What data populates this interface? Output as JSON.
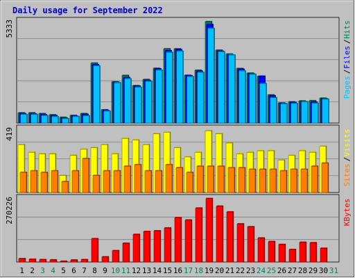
{
  "chart_data": {
    "type": "bar",
    "title": "Daily usage for September 2022",
    "days": [
      "1",
      "2",
      "3",
      "4",
      "5",
      "6",
      "7",
      "8",
      "9",
      "10",
      "11",
      "12",
      "13",
      "14",
      "15",
      "16",
      "17",
      "18",
      "19",
      "20",
      "21",
      "22",
      "23",
      "24",
      "25",
      "26",
      "27",
      "28",
      "29",
      "30",
      "31"
    ],
    "weekend_days": [
      "3",
      "4",
      "10",
      "11",
      "17",
      "18",
      "24",
      "25",
      "31"
    ],
    "panels": {
      "hits_files_pages": {
        "max_label": "5333",
        "legend": [
          {
            "text": "Pages",
            "color": "#00c0ff"
          },
          {
            "text": "/",
            "color": "#000000"
          },
          {
            "text": "Files",
            "color": "#0000ff"
          },
          {
            "text": "/",
            "color": "#000000"
          },
          {
            "text": "Hits",
            "color": "#00805c"
          }
        ],
        "ylim": [
          0,
          5333
        ],
        "series": [
          {
            "name": "Hits",
            "color": "#00805c",
            "values": [
              520,
              520,
              480,
              420,
              290,
              390,
              480,
              3100,
              680,
              2130,
              2460,
              1930,
              2250,
              2830,
              3840,
              3840,
              2470,
              2730,
              5250,
              3770,
              3570,
              2820,
              2580,
              2410,
              1450,
              1030,
              1090,
              1140,
              1150,
              1280,
              null
            ]
          },
          {
            "name": "Files",
            "color": "#0000ff",
            "values": [
              480,
              470,
              430,
              380,
              250,
              350,
              440,
              3020,
              640,
              2100,
              2350,
              1910,
              2200,
              2800,
              3740,
              3800,
              2440,
              2680,
              5100,
              3720,
              3520,
              2780,
              2540,
              2420,
              1400,
              1010,
              1060,
              1100,
              1080,
              1250,
              null
            ]
          },
          {
            "name": "Pages",
            "color": "#00c0ff",
            "values": [
              440,
              440,
              380,
              330,
              220,
              330,
              370,
              2960,
              610,
              2080,
              2290,
              1850,
              2150,
              2740,
              3660,
              3720,
              2400,
              2620,
              4900,
              3690,
              3520,
              2700,
              2520,
              2040,
              1310,
              990,
              1010,
              1100,
              1020,
              1230,
              null
            ]
          }
        ]
      },
      "visits_sites": {
        "max_label": "419",
        "legend": [
          {
            "text": "Sites",
            "color": "#ff8000"
          },
          {
            "text": "/",
            "color": "#000000"
          },
          {
            "text": "Visits",
            "color": "#ffff00"
          }
        ],
        "ylim": [
          0,
          419
        ],
        "series": [
          {
            "name": "Visits",
            "color": "#ffff00",
            "values": [
              310,
              260,
              250,
              250,
              110,
              240,
              280,
              290,
              310,
              250,
              350,
              340,
              310,
              380,
              390,
              290,
              230,
              260,
              400,
              380,
              320,
              250,
              260,
              270,
              270,
              210,
              240,
              270,
              260,
              300,
              null
            ]
          },
          {
            "name": "Sites",
            "color": "#ff8000",
            "values": [
              130,
              140,
              130,
              140,
              70,
              140,
              220,
              110,
              140,
              140,
              170,
              180,
              140,
              140,
              180,
              160,
              130,
              170,
              170,
              170,
              160,
              160,
              150,
              150,
              150,
              140,
              150,
              150,
              170,
              190,
              null
            ]
          }
        ]
      },
      "kbytes": {
        "max_label": "270226",
        "legend": [
          {
            "text": "KBytes",
            "color": "#ff0000"
          }
        ],
        "ylim": [
          0,
          270226
        ],
        "series": [
          {
            "name": "KBytes",
            "color": "#ff0000",
            "values": [
              13500,
              11000,
              9500,
              8500,
              2700,
              8000,
              9500,
              97000,
              21000,
              47000,
              78000,
              115000,
              127000,
              130000,
              142000,
              185000,
              175000,
              225000,
              265000,
              233000,
              209000,
              159000,
              147000,
              100000,
              85000,
              73000,
              52000,
              82000,
              80000,
              57000,
              null
            ]
          }
        ]
      }
    }
  }
}
